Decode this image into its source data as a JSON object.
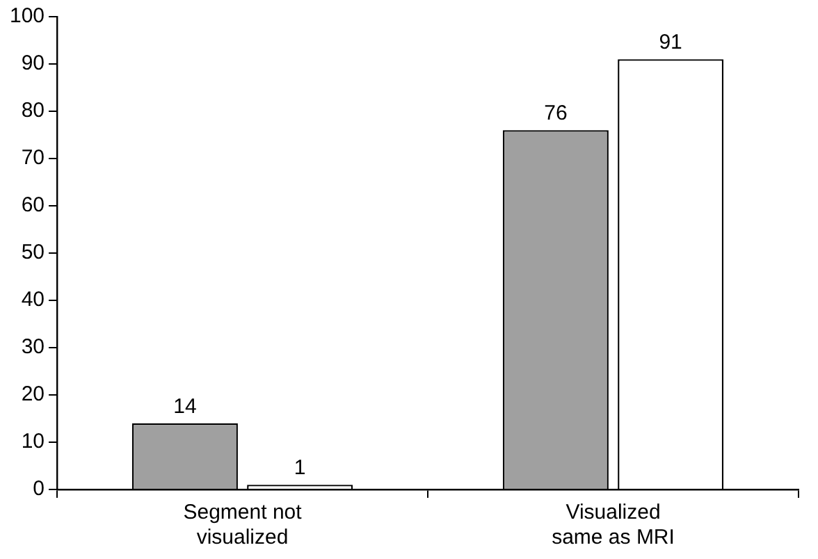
{
  "chart_data": {
    "type": "bar",
    "categories": [
      "Segment not visualized",
      "Visualized same as MRI"
    ],
    "series": [
      {
        "color": "#a0a0a0",
        "values": [
          14,
          76
        ]
      },
      {
        "color": "#ffffff",
        "values": [
          1,
          91
        ]
      }
    ],
    "ylim": [
      0,
      100
    ],
    "yticks": [
      0,
      10,
      20,
      30,
      40,
      50,
      60,
      70,
      80,
      90,
      100
    ],
    "grid": false,
    "legend": false,
    "data_labels": true
  }
}
